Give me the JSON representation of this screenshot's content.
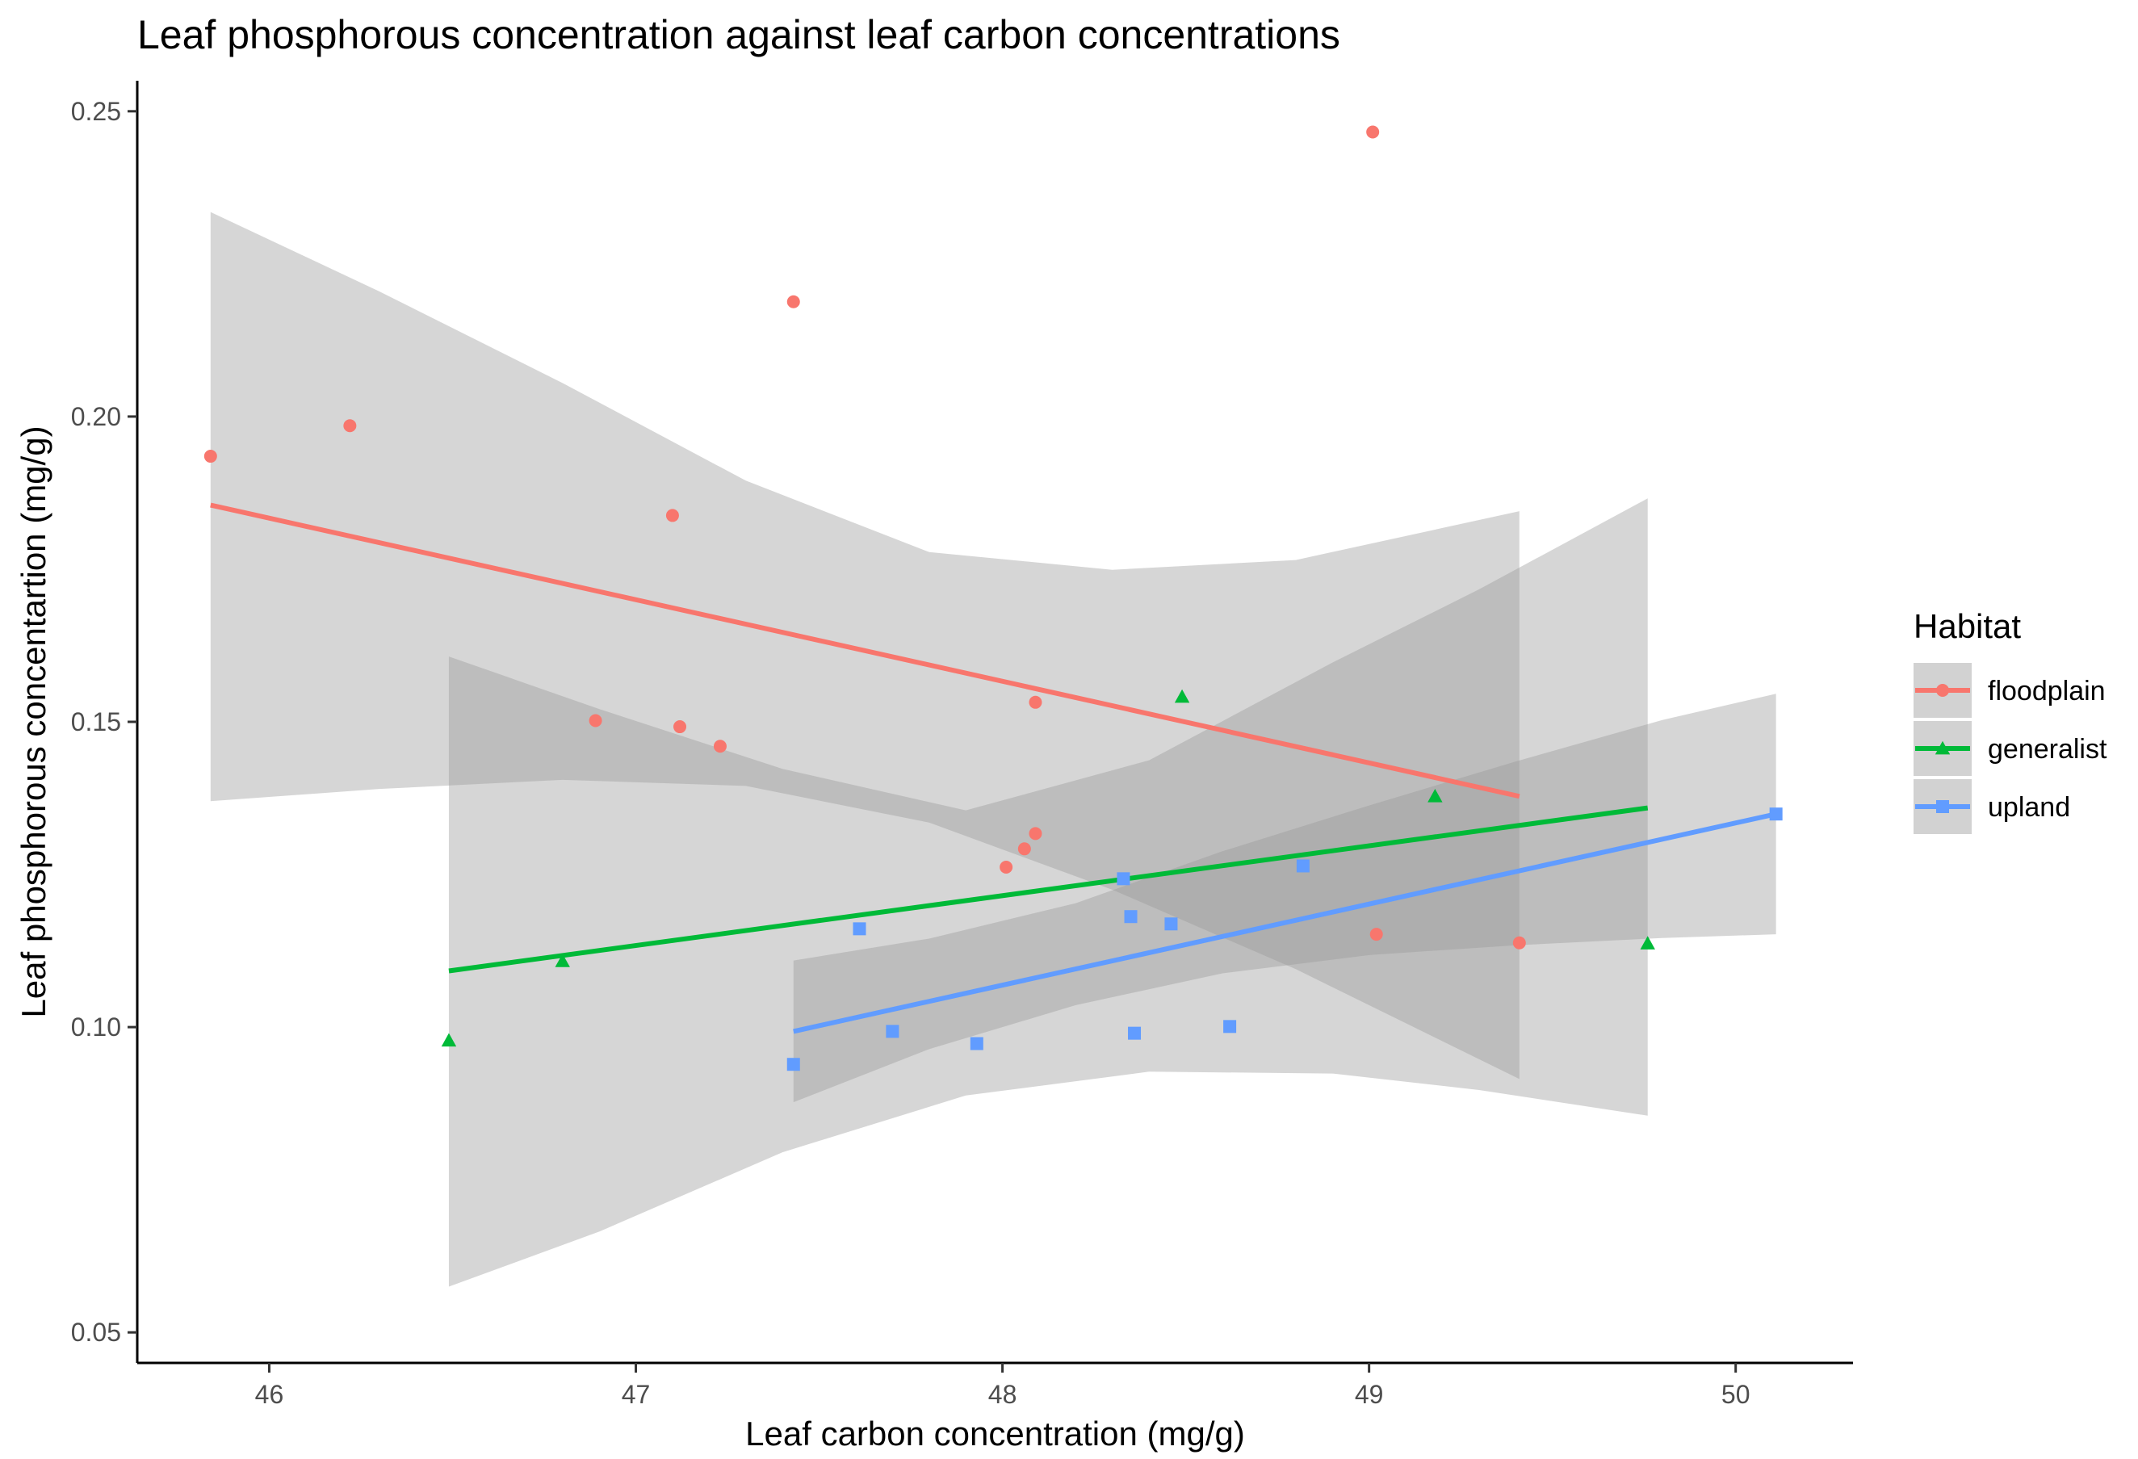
{
  "chart_data": {
    "type": "scatter",
    "title": "Leaf phosphorous concentration against leaf carbon concentrations",
    "xlabel": "Leaf carbon concentration (mg/g)",
    "ylabel": "Leaf phosphorous concentartion (mg/g)",
    "xlim": [
      45.64,
      50.32
    ],
    "ylim": [
      0.045,
      0.255
    ],
    "x_ticks": [
      46,
      47,
      48,
      49,
      50
    ],
    "y_ticks": [
      0.05,
      0.1,
      0.15,
      0.2,
      0.25
    ],
    "x_tick_labels": [
      "46",
      "47",
      "48",
      "49",
      "50"
    ],
    "y_tick_labels": [
      "0.05",
      "0.10",
      "0.15",
      "0.20",
      "0.25"
    ],
    "grid": false,
    "legend": {
      "title": "Habitat",
      "position": "right"
    },
    "series": [
      {
        "name": "floodplain",
        "color": "#F8766D",
        "marker": "circle",
        "points": [
          [
            45.84,
            0.1935
          ],
          [
            46.22,
            0.1985
          ],
          [
            46.89,
            0.1502
          ],
          [
            47.1,
            0.1838
          ],
          [
            47.12,
            0.1492
          ],
          [
            47.23,
            0.146
          ],
          [
            47.43,
            0.2188
          ],
          [
            48.01,
            0.1262
          ],
          [
            48.06,
            0.1292
          ],
          [
            48.09,
            0.1317
          ],
          [
            48.09,
            0.1532
          ],
          [
            49.01,
            0.2466
          ],
          [
            49.02,
            0.1152
          ],
          [
            49.41,
            0.1138
          ]
        ],
        "fit": {
          "x": [
            45.84,
            49.41
          ],
          "y": [
            0.1855,
            0.1378
          ]
        },
        "ci": {
          "x": [
            45.84,
            46.3,
            46.8,
            47.3,
            47.8,
            48.3,
            48.8,
            49.41
          ],
          "lower": [
            0.137,
            0.139,
            0.1405,
            0.1395,
            0.1335,
            0.1225,
            0.1095,
            0.0915
          ],
          "upper": [
            0.2335,
            0.2205,
            0.2055,
            0.1895,
            0.1778,
            0.1749,
            0.1765,
            0.1845
          ]
        }
      },
      {
        "name": "generalist",
        "color": "#00BA38",
        "marker": "triangle",
        "points": [
          [
            46.49,
            0.0978
          ],
          [
            46.8,
            0.1108
          ],
          [
            48.49,
            0.1541
          ],
          [
            49.18,
            0.1378
          ],
          [
            49.76,
            0.1137
          ]
        ],
        "fit": {
          "x": [
            46.49,
            49.76
          ],
          "y": [
            0.1092,
            0.1359
          ]
        },
        "ci": {
          "x": [
            46.49,
            46.9,
            47.4,
            47.9,
            48.4,
            48.9,
            49.3,
            49.76
          ],
          "lower": [
            0.0575,
            0.0665,
            0.0795,
            0.0888,
            0.0927,
            0.0924,
            0.0897,
            0.0855
          ],
          "upper": [
            0.1607,
            0.1521,
            0.1423,
            0.1355,
            0.1437,
            0.1597,
            0.1717,
            0.1866
          ]
        }
      },
      {
        "name": "upland",
        "color": "#619CFF",
        "marker": "square",
        "points": [
          [
            47.43,
            0.0939
          ],
          [
            47.61,
            0.1161
          ],
          [
            47.7,
            0.0993
          ],
          [
            47.93,
            0.0973
          ],
          [
            48.33,
            0.1243
          ],
          [
            48.35,
            0.1181
          ],
          [
            48.36,
            0.099
          ],
          [
            48.46,
            0.1169
          ],
          [
            48.62,
            0.1001
          ],
          [
            48.82,
            0.1264
          ],
          [
            50.11,
            0.1349
          ]
        ],
        "fit": {
          "x": [
            47.43,
            50.11
          ],
          "y": [
            0.0993,
            0.1349
          ]
        },
        "ci": {
          "x": [
            47.43,
            47.8,
            48.2,
            48.6,
            49.0,
            49.4,
            49.8,
            50.11
          ],
          "lower": [
            0.0877,
            0.0964,
            0.1036,
            0.1088,
            0.1118,
            0.1134,
            0.1146,
            0.1152
          ],
          "upper": [
            0.1109,
            0.1145,
            0.1203,
            0.1288,
            0.1363,
            0.1435,
            0.1503,
            0.1546
          ]
        }
      }
    ]
  }
}
